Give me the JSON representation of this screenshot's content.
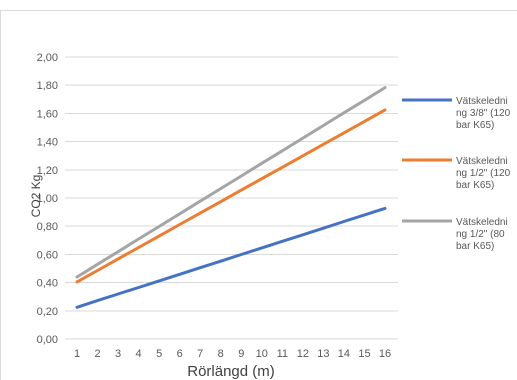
{
  "chart_data": {
    "type": "line",
    "title": "",
    "xlabel": "Rörlängd (m)",
    "ylabel": "CO2 Kg",
    "categories": [
      "1",
      "2",
      "3",
      "4",
      "5",
      "6",
      "7",
      "8",
      "9",
      "10",
      "11",
      "12",
      "13",
      "14",
      "15",
      "16"
    ],
    "ylim": [
      0,
      2
    ],
    "yticks": [
      "0,00",
      "0,20",
      "0,40",
      "0,60",
      "0,80",
      "1,00",
      "1,20",
      "1,40",
      "1,60",
      "1,80",
      "2,00"
    ],
    "grid": true,
    "legend_position": "right",
    "series": [
      {
        "name_lines": [
          "Vätskeledni",
          "ng 3/8\" (120",
          "bar K65)"
        ],
        "color": "#4472c4",
        "values": [
          0.225,
          0.272,
          0.319,
          0.365,
          0.412,
          0.459,
          0.506,
          0.552,
          0.599,
          0.646,
          0.693,
          0.739,
          0.786,
          0.833,
          0.88,
          0.926
        ]
      },
      {
        "name_lines": [
          "Vätskeledni",
          "ng 1/2\" (120",
          "bar K65)"
        ],
        "color": "#ed7d31",
        "values": [
          0.405,
          0.486,
          0.568,
          0.649,
          0.73,
          0.812,
          0.893,
          0.974,
          1.056,
          1.137,
          1.218,
          1.299,
          1.381,
          1.462,
          1.543,
          1.625
        ]
      },
      {
        "name_lines": [
          "Vätskeledni",
          "ng 1/2\" (80",
          "bar K65)"
        ],
        "color": "#a5a5a5",
        "values": [
          0.44,
          0.53,
          0.619,
          0.709,
          0.798,
          0.888,
          0.977,
          1.067,
          1.156,
          1.246,
          1.335,
          1.425,
          1.514,
          1.604,
          1.693,
          1.783
        ]
      }
    ]
  }
}
